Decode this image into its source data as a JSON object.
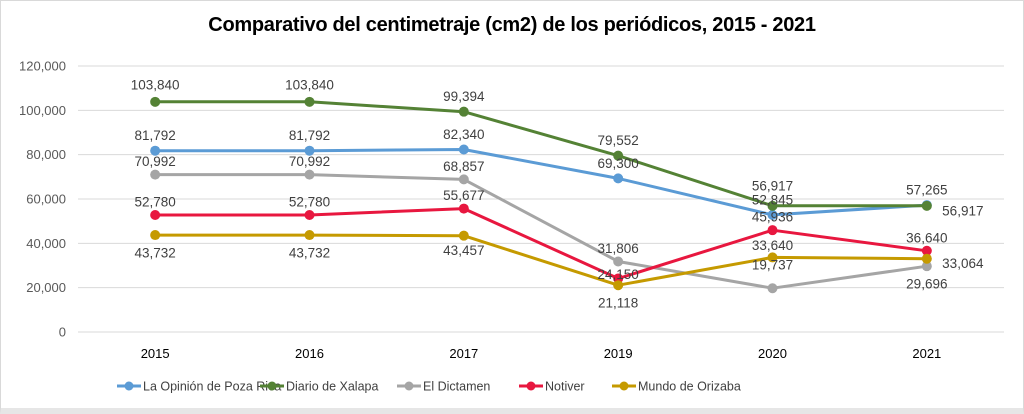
{
  "chart_data": {
    "type": "line",
    "title": "Comparativo del centimetraje (cm2) de los periódicos, 2015 - 2021",
    "xlabel": "",
    "ylabel": "",
    "categories": [
      "2015",
      "2016",
      "2017",
      "2019",
      "2020",
      "2021"
    ],
    "ylim": [
      0,
      120000
    ],
    "yticks": [
      0,
      20000,
      40000,
      60000,
      80000,
      100000,
      120000
    ],
    "ytick_labels": [
      "0",
      "20,000",
      "40,000",
      "60,000",
      "80,000",
      "100,000",
      "120,000"
    ],
    "grid": true,
    "legend_position": "bottom",
    "series": [
      {
        "name": "La Opinión de Poza Rica",
        "color": "#5b9bd5",
        "values": [
          81792,
          81792,
          82340,
          69300,
          52845,
          57265
        ],
        "labels": [
          "81,792",
          "81,792",
          "82,340",
          "69,300",
          "52,845",
          "57,265"
        ]
      },
      {
        "name": "Diario de Xalapa",
        "color": "#548235",
        "values": [
          103840,
          103840,
          99394,
          79552,
          56917,
          56917
        ],
        "labels": [
          "103,840",
          "103,840",
          "99,394",
          "79,552",
          "56,917",
          "56,917"
        ]
      },
      {
        "name": "El Dictamen",
        "color": "#a5a5a5",
        "values": [
          70992,
          70992,
          68857,
          31806,
          19737,
          29696
        ],
        "labels": [
          "70,992",
          "70,992",
          "68,857",
          "31,806",
          "19,737",
          "29,696"
        ]
      },
      {
        "name": "Notiver",
        "color": "#e8173f",
        "values": [
          52780,
          52780,
          55677,
          24150,
          45936,
          36640
        ],
        "labels": [
          "52,780",
          "52,780",
          "55,677",
          "24,150",
          "45,936",
          "36,640"
        ]
      },
      {
        "name": "Mundo de Orizaba",
        "color": "#c59a00",
        "values": [
          43732,
          43732,
          43457,
          21118,
          33640,
          33064
        ],
        "labels": [
          "43,732",
          "43,732",
          "43,457",
          "21,118",
          "33,640",
          "33,064"
        ]
      }
    ]
  }
}
